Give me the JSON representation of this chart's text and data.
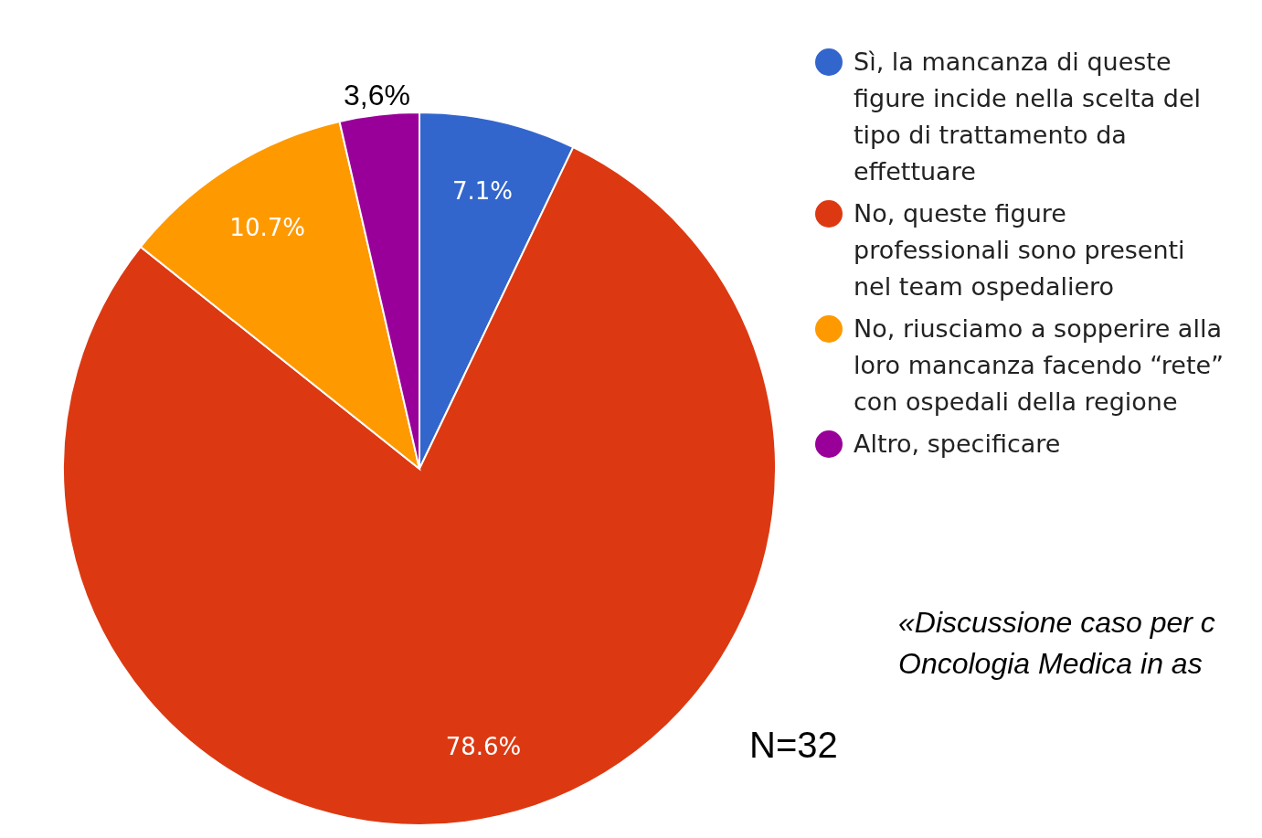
{
  "chart_data": {
    "type": "pie",
    "categories": [
      "Sì, la mancanza di queste figure incide nella scelta del tipo di trattamento da effettuare",
      "No, queste figure professionali sono presenti nel team ospedaliero",
      "No, riusciamo a sopperire alla loro mancanza facendo “rete” con ospedali della regione",
      "Altro, specificare"
    ],
    "values": [
      7.1,
      78.6,
      10.7,
      3.6
    ],
    "colors": [
      "#3366cc",
      "#dc3912",
      "#ff9900",
      "#990099"
    ],
    "value_labels": [
      "7.1%",
      "78.6%",
      "10.7%",
      "3,6%"
    ],
    "legend": "right",
    "annotations": [
      "N=32",
      "«Discussione caso per c",
      "Oncologia Medica in as"
    ]
  }
}
